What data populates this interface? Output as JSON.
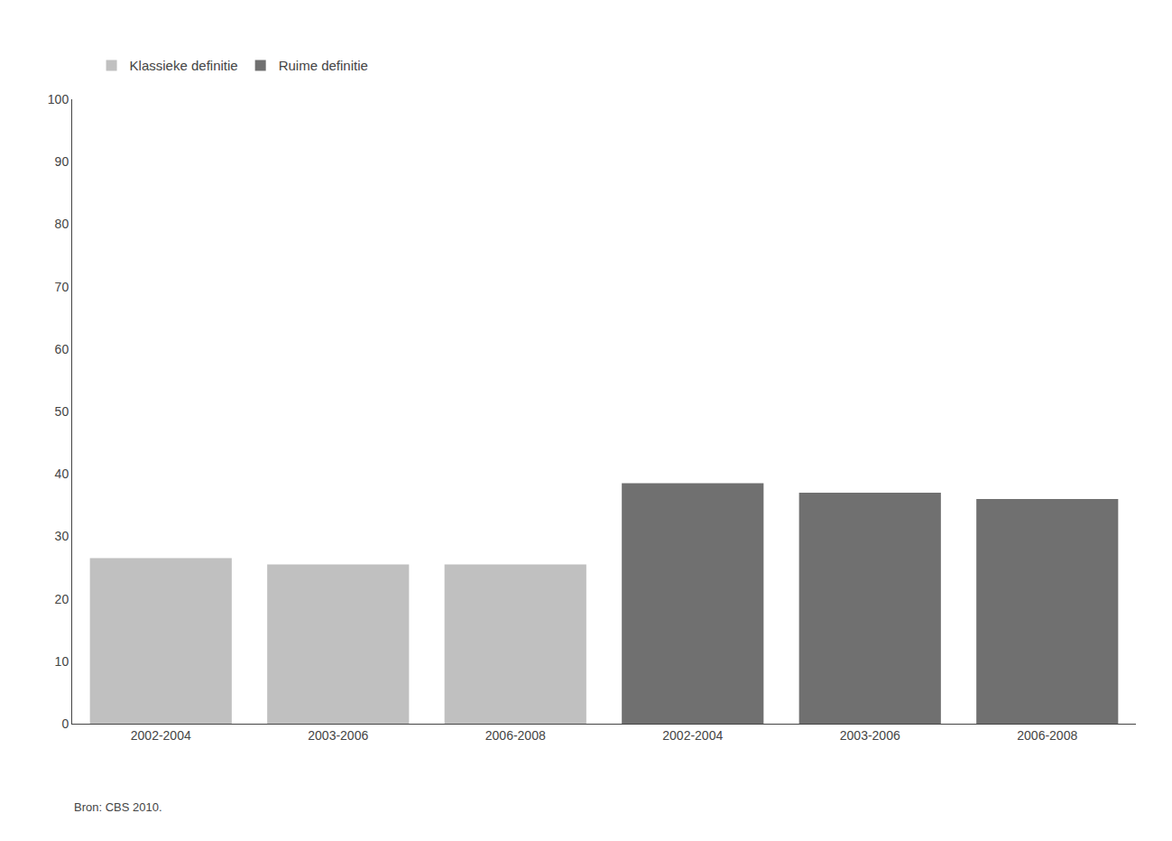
{
  "chart_data": {
    "type": "bar",
    "categories": [
      "2002-2004",
      "2003-2006",
      "2006-2008",
      "2002-2004",
      "2003-2006",
      "2006-2008"
    ],
    "series": [
      {
        "name": "Klassieke definitie",
        "color": "#c0c0c0",
        "values": [
          26.5,
          25.5,
          25.5,
          null,
          null,
          null
        ]
      },
      {
        "name": "Ruime definitie",
        "color": "#707070",
        "values": [
          null,
          null,
          null,
          38.5,
          37.0,
          36.0
        ]
      }
    ],
    "ylim": [
      0,
      100
    ],
    "yticks": [
      0,
      10,
      20,
      30,
      40,
      50,
      60,
      70,
      80,
      90,
      100
    ],
    "grid": false,
    "legend": "top",
    "annotations": [
      "Bron: CBS 2010."
    ]
  }
}
